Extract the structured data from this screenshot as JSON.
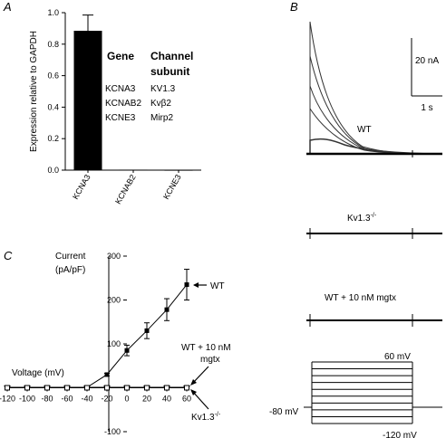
{
  "panels": {
    "a": "A",
    "b": "B",
    "c": "C"
  },
  "chart_data": [
    {
      "panel": "A",
      "type": "bar",
      "ylabel": "Expression relative to GAPDH",
      "categories": [
        "KCNA3",
        "KCNAB2",
        "KCNE3"
      ],
      "values": [
        0.885,
        0.003,
        0.0
      ],
      "error": [
        0.1,
        0.0,
        0.0
      ],
      "ylim": [
        0,
        1.0
      ],
      "yticks": [
        "0.0",
        "0.2",
        "0.4",
        "0.6",
        "0.8",
        "1.0"
      ],
      "bar_color": "#000000",
      "table": {
        "headers": [
          "Gene",
          "Channel",
          "subunit"
        ],
        "rows": [
          {
            "gene": "KCNA3",
            "subunit": "KV1.3"
          },
          {
            "gene": "KCNAB2",
            "subunit": "Kvβ2"
          },
          {
            "gene": "KCNE3",
            "subunit": "Mirp2"
          }
        ]
      }
    },
    {
      "panel": "B",
      "type": "line",
      "description_free": true,
      "labels": {
        "wt": "WT",
        "ko": "Kv1.3",
        "ko_sup": "-/-",
        "mgtx": "WT + 10 nM mgtx"
      },
      "scale_bar": {
        "current": "20 nA",
        "time": "1 s"
      },
      "protocol": {
        "holding": "-80 mV",
        "top": "60 mV",
        "bottom": "-120 mV",
        "steps": 10
      }
    },
    {
      "panel": "C",
      "type": "line",
      "ylabel_line1": "Current",
      "ylabel_line2": "(pA/pF)",
      "xlabel": "Voltage (mV)",
      "xlim": [
        -120,
        60
      ],
      "ylim": [
        -100,
        300
      ],
      "xticks": [
        "-120",
        "-100",
        "-80",
        "-60",
        "-40",
        "-20",
        "0",
        "20",
        "40",
        "60"
      ],
      "yticks": [
        "-100",
        "100",
        "200",
        "300"
      ],
      "x": [
        -120,
        -100,
        -80,
        -60,
        -40,
        -20,
        0,
        20,
        40,
        60
      ],
      "series": [
        {
          "name": "WT",
          "values": [
            0,
            0,
            0,
            0,
            1,
            30,
            85,
            130,
            178,
            235
          ],
          "error": [
            0,
            0,
            0,
            0,
            0,
            3,
            12,
            18,
            25,
            35
          ],
          "marker": "filled-square"
        },
        {
          "name": "WT + 10 nM mgtx",
          "values": [
            0,
            0,
            0,
            0,
            0,
            0,
            0,
            0,
            0,
            0
          ],
          "error": [
            0,
            0,
            0,
            0,
            0,
            0,
            0,
            0,
            0,
            0
          ],
          "marker": "open-triangle"
        },
        {
          "name": "Kv1.3",
          "values": [
            0,
            0,
            0,
            0,
            0,
            0,
            0,
            0,
            0,
            0
          ],
          "error": [
            0,
            0,
            0,
            0,
            0,
            0,
            0,
            0,
            0,
            0
          ],
          "marker": "open-square"
        }
      ],
      "annotations": {
        "wt": "WT",
        "mgtx_line1": "WT + 10 nM",
        "mgtx_line2": "mgtx",
        "ko": "Kv1.3",
        "ko_sup": "-/-"
      }
    }
  ]
}
